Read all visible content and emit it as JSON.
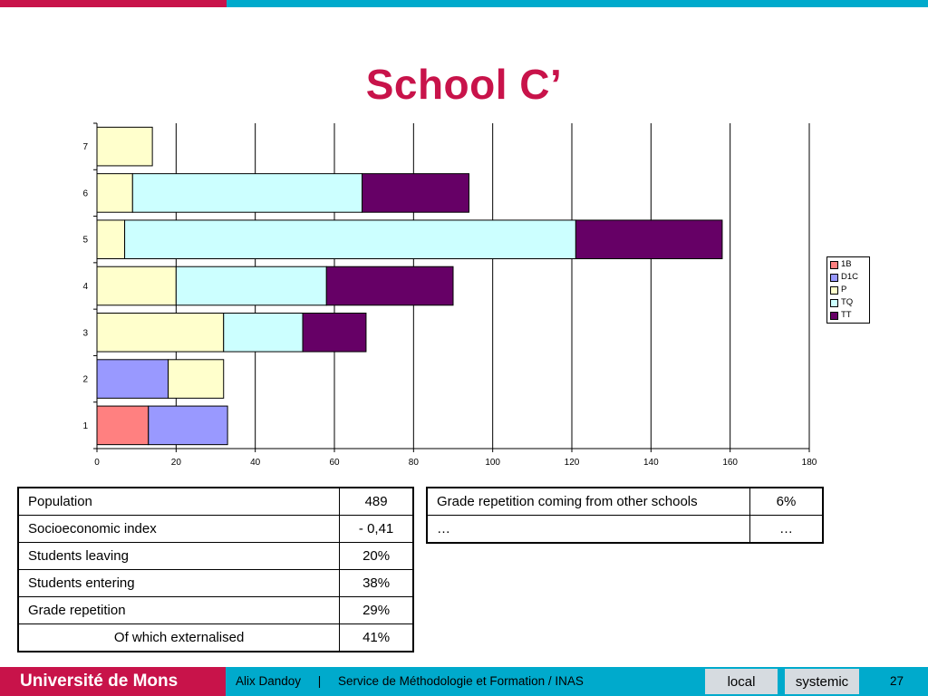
{
  "slide": {
    "title": "School C’",
    "colors": {
      "accent_red": "#c8134a",
      "accent_blue": "#00aacc"
    }
  },
  "chart_data": {
    "type": "bar",
    "orientation": "horizontal",
    "stacked": true,
    "categories": [
      "1",
      "2",
      "3",
      "4",
      "5",
      "6",
      "7"
    ],
    "series": [
      {
        "name": "1B",
        "color": "#ff8080",
        "values": [
          13,
          0,
          0,
          0,
          0,
          0,
          0
        ]
      },
      {
        "name": "D1C",
        "color": "#9999ff",
        "values": [
          20,
          18,
          0,
          0,
          0,
          0,
          0
        ]
      },
      {
        "name": "P",
        "color": "#ffffcc",
        "values": [
          0,
          14,
          32,
          20,
          7,
          9,
          14
        ]
      },
      {
        "name": "TQ",
        "color": "#ccffff",
        "values": [
          0,
          0,
          20,
          38,
          114,
          58,
          0
        ]
      },
      {
        "name": "TT",
        "color": "#660066",
        "values": [
          0,
          0,
          16,
          32,
          37,
          27,
          0
        ]
      }
    ],
    "xlim": [
      0,
      180
    ],
    "xticks": [
      "0",
      "20",
      "40",
      "60",
      "80",
      "100",
      "120",
      "140",
      "160",
      "180"
    ],
    "grid": "vertical",
    "legend_position": "right"
  },
  "stats_left": [
    {
      "label": "Population",
      "value": "489"
    },
    {
      "label": "Socioeconomic index",
      "value": "- 0,41"
    },
    {
      "label": "Students leaving",
      "value": "20%"
    },
    {
      "label": "Students entering",
      "value": "38%"
    },
    {
      "label": "Grade repetition",
      "value": "29%"
    },
    {
      "label": "Of which externalised",
      "value": "41%"
    }
  ],
  "stats_right": [
    {
      "label": "Grade repetition coming from other schools",
      "value": "6%"
    },
    {
      "label": "…",
      "value": "…"
    }
  ],
  "footer": {
    "brand": "Université de Mons",
    "text": "Alix Dandoy     |     Service de Méthodologie et Formation / INAS",
    "button_local": "local",
    "button_systemic": "systemic",
    "page_number": "27"
  }
}
